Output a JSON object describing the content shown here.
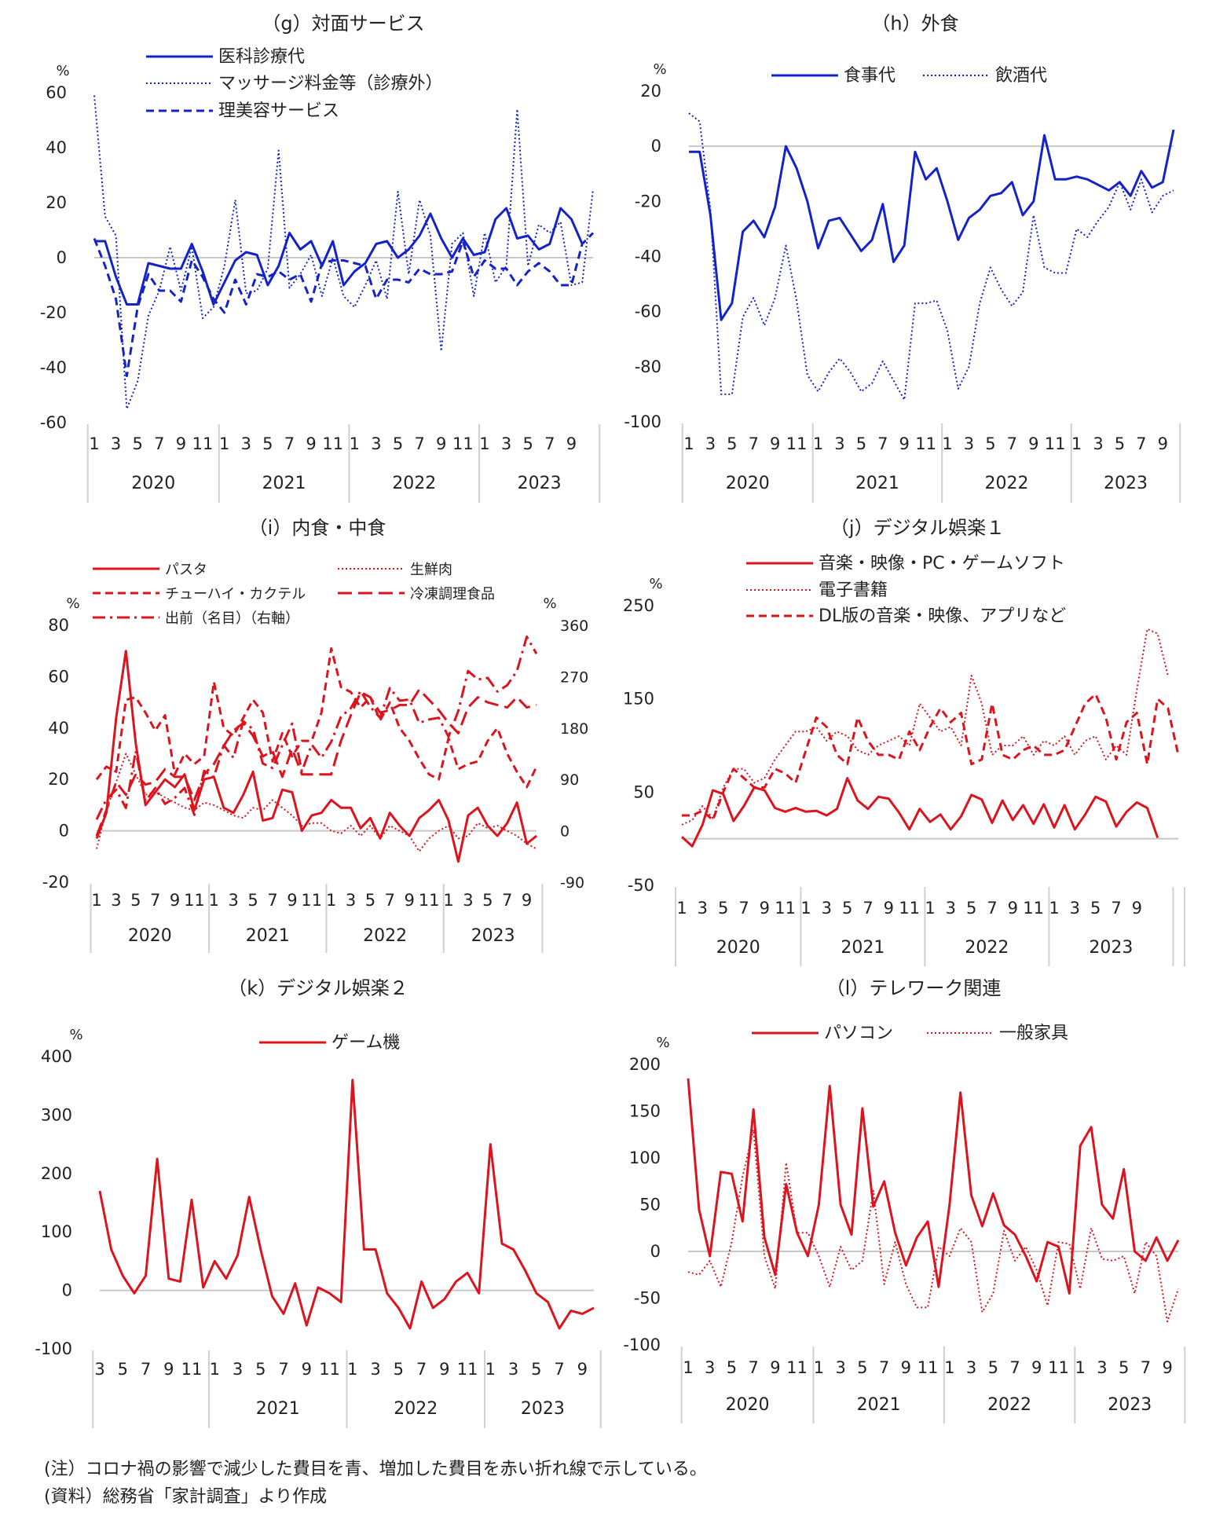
{
  "notes": {
    "note1": "(注）コロナ禍の影響で減少した費目を青、増加した費目を赤い折れ線で示している。",
    "note2": "(資料）総務省「家計調査」より作成"
  },
  "chart_data": [
    {
      "id": "g",
      "type": "line",
      "title": "（g）対面サービス",
      "ylabel": "%",
      "ylim": [
        -60,
        60
      ],
      "yticks": [
        60,
        40,
        20,
        0,
        -20,
        -40,
        -60
      ],
      "x_start": "2020-01",
      "x_ticks": [
        "1",
        "3",
        "5",
        "7",
        "9",
        "11",
        "1",
        "3",
        "5",
        "7",
        "9",
        "11",
        "1",
        "3",
        "5",
        "7",
        "9",
        "11",
        "1",
        "3",
        "5",
        "7",
        "9"
      ],
      "years": [
        "2020",
        "2021",
        "2022",
        "2023"
      ],
      "color": "#1423c8",
      "series": [
        {
          "name": "医科診療代",
          "style": "solid",
          "values": [
            6,
            6,
            -7,
            -17,
            -17,
            -2,
            -3,
            -4,
            -4,
            5,
            -5,
            -17,
            -9,
            -1,
            2,
            1,
            -10,
            -3,
            9,
            3,
            6,
            -3,
            6,
            -10,
            -5,
            -2,
            5,
            6,
            0,
            3,
            8,
            16,
            7,
            0,
            7,
            1,
            2,
            14,
            18,
            7,
            8,
            3,
            5,
            18,
            14,
            5
          ]
        },
        {
          "name": "マッサージ料金等（診療外）",
          "style": "dotted",
          "values": [
            59,
            15,
            8,
            -55,
            -45,
            -21,
            -12,
            4,
            -12,
            4,
            -22,
            -18,
            -3,
            21,
            -13,
            -12,
            -4,
            39,
            -11,
            -6,
            1,
            -14,
            0,
            -14,
            -18,
            -10,
            -1,
            -15,
            24,
            -6,
            21,
            8,
            -34,
            5,
            9,
            -14,
            9,
            -9,
            -3,
            54,
            -3,
            12,
            9,
            13,
            -10,
            -9,
            25
          ]
        },
        {
          "name": "理美容サービス",
          "style": "dashed",
          "values": [
            7,
            -3,
            -15,
            -43,
            -18,
            -6,
            -12,
            -12,
            -16,
            -1,
            -7,
            -15,
            -20,
            -8,
            -17,
            -6,
            -7,
            -5,
            -8,
            -6,
            -16,
            -2,
            -1,
            -1,
            -2,
            -3,
            -15,
            -8,
            -8,
            -9,
            -4,
            -6,
            -6,
            -5,
            6,
            -7,
            -1,
            -4,
            -4,
            -10,
            -5,
            -2,
            -5,
            -10,
            -10,
            5,
            9
          ]
        }
      ]
    },
    {
      "id": "h",
      "type": "line",
      "title": "（h）外食",
      "ylabel": "%",
      "ylim": [
        -100,
        20
      ],
      "yticks": [
        20,
        0,
        -20,
        -40,
        -60,
        -80,
        -100
      ],
      "x_start": "2020-01",
      "x_ticks": [
        "1",
        "3",
        "5",
        "7",
        "9",
        "11",
        "1",
        "3",
        "5",
        "7",
        "9",
        "11",
        "1",
        "3",
        "5",
        "7",
        "9",
        "11",
        "1",
        "3",
        "5",
        "7",
        "9"
      ],
      "years": [
        "2020",
        "2021",
        "2022",
        "2023"
      ],
      "color": "#1423c8",
      "series": [
        {
          "name": "食事代",
          "style": "solid",
          "values": [
            -2,
            -2,
            -25,
            -63,
            -57,
            -31,
            -27,
            -33,
            -22,
            0,
            -8,
            -20,
            -37,
            -27,
            -26,
            -32,
            -38,
            -34,
            -21,
            -42,
            -36,
            -2,
            -12,
            -8,
            -20,
            -34,
            -26,
            -23,
            -18,
            -17,
            -13,
            -25,
            -20,
            4,
            -12,
            -12,
            -11,
            -12,
            -14,
            -16,
            -13,
            -18,
            -9,
            -15,
            -13,
            6
          ]
        },
        {
          "name": "飲酒代",
          "style": "dotted",
          "values": [
            12,
            9,
            -23,
            -90,
            -90,
            -62,
            -55,
            -65,
            -55,
            -36,
            -56,
            -83,
            -89,
            -82,
            -77,
            -82,
            -89,
            -86,
            -78,
            -85,
            -92,
            -57,
            -57,
            -56,
            -67,
            -88,
            -80,
            -57,
            -44,
            -52,
            -58,
            -53,
            -25,
            -44,
            -46,
            -46,
            -30,
            -33,
            -27,
            -22,
            -13,
            -23,
            -12,
            -24,
            -18,
            -16
          ]
        }
      ]
    },
    {
      "id": "i",
      "type": "line",
      "title": "（i）内食・中食",
      "ylabel": "%",
      "ylim": [
        -20,
        80
      ],
      "yticks": [
        80,
        60,
        40,
        20,
        0,
        -20
      ],
      "y2label": "%",
      "y2lim": [
        -90,
        360
      ],
      "y2ticks": [
        360,
        270,
        180,
        90,
        0,
        -90
      ],
      "x_start": "2020-01",
      "x_ticks": [
        "1",
        "3",
        "5",
        "7",
        "9",
        "11",
        "1",
        "3",
        "5",
        "7",
        "9",
        "11",
        "1",
        "3",
        "5",
        "7",
        "9",
        "11",
        "1",
        "3",
        "5",
        "7",
        "9"
      ],
      "years": [
        "2020",
        "2021",
        "2022",
        "2023"
      ],
      "color": "#dc141e",
      "series": [
        {
          "name": "パスタ",
          "style": "solid",
          "axis": "left",
          "values": [
            -3,
            7,
            44,
            70,
            34,
            10,
            15,
            20,
            17,
            22,
            8,
            20,
            21,
            9,
            7,
            14,
            23,
            4,
            5,
            16,
            15,
            0,
            6,
            7,
            12,
            9,
            9,
            1,
            5,
            -3,
            7,
            2,
            -2,
            5,
            8,
            12,
            4,
            -12,
            6,
            9,
            2,
            -2,
            3,
            11,
            -5,
            -2
          ]
        },
        {
          "name": "生鮮肉",
          "style": "dotted",
          "axis": "left",
          "values": [
            -7,
            8,
            19,
            30,
            22,
            14,
            15,
            13,
            11,
            9,
            8,
            11,
            10,
            8,
            6,
            5,
            9,
            8,
            12,
            9,
            6,
            2,
            3,
            3,
            0,
            -1,
            2,
            -2,
            2,
            -3,
            2,
            0,
            -2,
            -8,
            -3,
            0,
            2,
            -3,
            -2,
            3,
            1,
            2,
            0,
            -2,
            -5,
            -7
          ]
        },
        {
          "name": "チューハイ・カクテル",
          "style": "dashed",
          "axis": "left",
          "values": [
            20,
            25,
            23,
            51,
            52,
            46,
            39,
            45,
            22,
            30,
            26,
            29,
            58,
            40,
            37,
            44,
            51,
            46,
            27,
            38,
            29,
            35,
            35,
            46,
            71,
            56,
            54,
            48,
            52,
            43,
            50,
            40,
            35,
            28,
            22,
            20,
            36,
            24,
            26,
            27,
            35,
            40,
            30,
            23,
            17,
            25
          ]
        },
        {
          "name": "冷凍調理食品",
          "style": "longdash",
          "axis": "left",
          "values": [
            -2,
            8,
            19,
            14,
            22,
            18,
            19,
            24,
            21,
            21,
            12,
            22,
            26,
            33,
            39,
            42,
            37,
            29,
            31,
            21,
            32,
            22,
            22,
            22,
            22,
            35,
            45,
            54,
            52,
            46,
            47,
            49,
            49,
            55,
            51,
            47,
            42,
            38,
            48,
            52,
            50,
            49,
            48,
            52,
            48,
            49
          ]
        },
        {
          "name": "出前（名目）（右軸）",
          "style": "dashdot",
          "axis": "right",
          "values": [
            20,
            55,
            72,
            40,
            140,
            52,
            75,
            47,
            58,
            75,
            28,
            105,
            94,
            150,
            128,
            192,
            178,
            118,
            110,
            150,
            188,
            104,
            151,
            128,
            156,
            200,
            215,
            245,
            217,
            198,
            250,
            228,
            230,
            189,
            195,
            198,
            165,
            210,
            280,
            265,
            268,
            244,
            255,
            280,
            340,
            310
          ]
        }
      ]
    },
    {
      "id": "j",
      "type": "line",
      "title": "（j）デジタル娯楽１",
      "ylabel": "%",
      "ylim": [
        -50,
        250
      ],
      "yticks": [
        250,
        150,
        50,
        -50
      ],
      "x_start": "2020-01",
      "x_ticks": [
        "1",
        "3",
        "5",
        "7",
        "9",
        "11",
        "1",
        "3",
        "5",
        "7",
        "9",
        "11",
        "1",
        "3",
        "5",
        "7",
        "9",
        "11",
        "1",
        "3",
        "5",
        "7",
        "9"
      ],
      "years": [
        "2020",
        "2021",
        "2022",
        "2023"
      ],
      "color": "#dc141e",
      "series": [
        {
          "name": "音楽・映像・PC・ゲームソフト",
          "style": "solid",
          "values": [
            2,
            -8,
            15,
            52,
            48,
            19,
            35,
            55,
            52,
            33,
            29,
            33,
            29,
            30,
            25,
            32,
            65,
            41,
            32,
            45,
            43,
            28,
            10,
            32,
            18,
            26,
            10,
            24,
            47,
            42,
            17,
            41,
            20,
            36,
            16,
            37,
            12,
            36,
            10,
            26,
            45,
            40,
            13,
            29,
            39,
            33,
            1
          ]
        },
        {
          "name": "電子書籍",
          "style": "dotted",
          "values": [
            15,
            20,
            35,
            22,
            55,
            75,
            75,
            60,
            65,
            85,
            100,
            115,
            115,
            120,
            105,
            115,
            110,
            95,
            90,
            100,
            105,
            110,
            100,
            145,
            130,
            115,
            120,
            100,
            175,
            145,
            90,
            100,
            100,
            110,
            90,
            105,
            100,
            110,
            90,
            105,
            110,
            85,
            100,
            90,
            160,
            225,
            220,
            175
          ]
        },
        {
          "name": "DL版の音楽・映像、アプリなど",
          "style": "dashed",
          "values": [
            25,
            25,
            30,
            20,
            50,
            75,
            65,
            55,
            55,
            75,
            70,
            60,
            95,
            130,
            120,
            90,
            80,
            130,
            105,
            90,
            90,
            85,
            115,
            95,
            120,
            140,
            125,
            135,
            80,
            85,
            145,
            90,
            85,
            95,
            100,
            90,
            90,
            95,
            120,
            145,
            155,
            130,
            85,
            125,
            135,
            80,
            150,
            140,
            90
          ]
        }
      ]
    },
    {
      "id": "k",
      "type": "line",
      "title": "（k）デジタル娯楽２",
      "ylabel": "%",
      "ylim": [
        -100,
        400
      ],
      "yticks": [
        400,
        300,
        200,
        100,
        0,
        -100
      ],
      "x_start": "2020-03",
      "x_ticks": [
        "3",
        "5",
        "7",
        "9",
        "11",
        "1",
        "3",
        "5",
        "7",
        "9",
        "11",
        "1",
        "3",
        "5",
        "7",
        "9",
        "11",
        "1",
        "3",
        "5",
        "7",
        "9"
      ],
      "years": [
        "",
        "2021",
        "2022",
        "2023"
      ],
      "color": "#dc141e",
      "series": [
        {
          "name": "ゲーム機",
          "style": "solid",
          "values": [
            170,
            70,
            25,
            -5,
            25,
            225,
            20,
            15,
            155,
            5,
            50,
            20,
            60,
            160,
            70,
            -10,
            -40,
            12,
            -60,
            5,
            -5,
            -20,
            360,
            70,
            70,
            -5,
            -30,
            -65,
            15,
            -30,
            -15,
            15,
            30,
            -5,
            250,
            80,
            70,
            35,
            -5,
            -20,
            -65,
            -35,
            -40,
            -30
          ]
        }
      ]
    },
    {
      "id": "l",
      "type": "line",
      "title": "（l）テレワーク関連",
      "ylabel": "%",
      "ylim": [
        -100,
        200
      ],
      "yticks": [
        200,
        150,
        100,
        50,
        0,
        -50,
        -100
      ],
      "x_start": "2020-01",
      "x_ticks": [
        "1",
        "3",
        "5",
        "7",
        "9",
        "11",
        "1",
        "3",
        "5",
        "7",
        "9",
        "11",
        "1",
        "3",
        "5",
        "7",
        "9",
        "11",
        "1",
        "3",
        "5",
        "7",
        "9"
      ],
      "years": [
        "2020",
        "2021",
        "2022",
        "2023"
      ],
      "color": "#dc141e",
      "series": [
        {
          "name": "パソコン",
          "style": "solid",
          "values": [
            185,
            45,
            -5,
            85,
            83,
            32,
            152,
            15,
            -25,
            72,
            20,
            -5,
            50,
            177,
            50,
            18,
            153,
            48,
            75,
            20,
            -15,
            15,
            32,
            -38,
            50,
            170,
            60,
            27,
            62,
            28,
            18,
            -5,
            -32,
            10,
            5,
            -45,
            113,
            133,
            50,
            35,
            88,
            0,
            -10,
            15,
            -10,
            12
          ]
        },
        {
          "name": "一般家具",
          "style": "dotted",
          "values": [
            -22,
            -25,
            -10,
            -38,
            10,
            80,
            130,
            -5,
            -40,
            95,
            20,
            20,
            -5,
            -38,
            5,
            -20,
            -10,
            65,
            -35,
            10,
            -35,
            -60,
            -60,
            5,
            -5,
            25,
            10,
            -65,
            -45,
            22,
            -10,
            5,
            -20,
            -58,
            10,
            8,
            -40,
            25,
            -8,
            -10,
            -5,
            -45,
            10,
            -5,
            -75,
            -40
          ]
        }
      ]
    }
  ]
}
